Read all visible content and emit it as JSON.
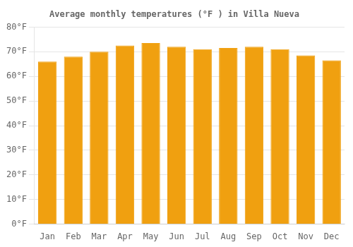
{
  "chart_data": {
    "type": "bar",
    "title": "Average monthly temperatures (°F ) in Villa Nueva",
    "categories": [
      "Jan",
      "Feb",
      "Mar",
      "Apr",
      "May",
      "Jun",
      "Jul",
      "Aug",
      "Sep",
      "Oct",
      "Nov",
      "Dec"
    ],
    "values": [
      66,
      68,
      70,
      72.5,
      73.5,
      72,
      71,
      71.5,
      72,
      71,
      68.5,
      66.5
    ],
    "color": "#F0A010",
    "ylim": [
      0,
      80
    ],
    "yticks": [
      {
        "value": 0,
        "label": "0°F"
      },
      {
        "value": 10,
        "label": "10°F"
      },
      {
        "value": 20,
        "label": "20°F"
      },
      {
        "value": 30,
        "label": "30°F"
      },
      {
        "value": 40,
        "label": "40°F"
      },
      {
        "value": 50,
        "label": "50°F"
      },
      {
        "value": 60,
        "label": "60°F"
      },
      {
        "value": 70,
        "label": "70°F"
      },
      {
        "value": 80,
        "label": "80°F"
      }
    ],
    "grid": true
  }
}
